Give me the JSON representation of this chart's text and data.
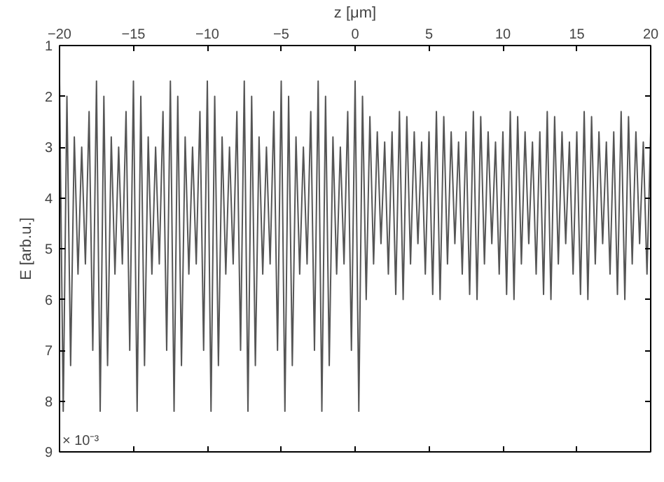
{
  "chart_data": {
    "type": "line",
    "xlabel": "z [μm]",
    "ylabel": "E [arb.u.]",
    "annotations": [
      "× 10⁻³"
    ],
    "x": [
      -20,
      -19.75,
      -19.5,
      -19.25,
      -19,
      -18.75,
      -18.5,
      -18.25,
      -18,
      -17.75,
      -17.5,
      -17.25,
      -17,
      -16.75,
      -16.5,
      -16.25,
      -16,
      -15.75,
      -15.5,
      -15.25,
      -15,
      -14.75,
      -14.5,
      -14.25,
      -14,
      -13.75,
      -13.5,
      -13.25,
      -13,
      -12.75,
      -12.5,
      -12.25,
      -12,
      -11.75,
      -11.5,
      -11.25,
      -11,
      -10.75,
      -10.5,
      -10.25,
      -10,
      -9.75,
      -9.5,
      -9.25,
      -9,
      -8.75,
      -8.5,
      -8.25,
      -8,
      -7.75,
      -7.5,
      -7.25,
      -7,
      -6.75,
      -6.5,
      -6.25,
      -6,
      -5.75,
      -5.5,
      -5.25,
      -5,
      -4.75,
      -4.5,
      -4.25,
      -4,
      -3.75,
      -3.5,
      -3.25,
      -3,
      -2.75,
      -2.5,
      -2.25,
      -2,
      -1.75,
      -1.5,
      -1.25,
      -1,
      -0.75,
      -0.5,
      -0.25,
      0,
      0.25,
      0.5,
      0.75,
      1,
      1.25,
      1.5,
      1.75,
      2,
      2.25,
      2.5,
      2.75,
      3,
      3.25,
      3.5,
      3.75,
      4,
      4.25,
      4.5,
      4.75,
      5,
      5.25,
      5.5,
      5.75,
      6,
      6.25,
      6.5,
      6.75,
      7,
      7.25,
      7.5,
      7.75,
      8,
      8.25,
      8.5,
      8.75,
      9,
      9.25,
      9.5,
      9.75,
      10,
      10.25,
      10.5,
      10.75,
      11,
      11.25,
      11.5,
      11.75,
      12,
      12.25,
      12.5,
      12.75,
      13,
      13.25,
      13.5,
      13.75,
      14,
      14.25,
      14.5,
      14.75,
      15,
      15.25,
      15.5,
      15.75,
      16,
      16.25,
      16.5,
      16.75,
      17,
      17.25,
      17.5,
      17.75,
      18,
      18.25,
      18.5,
      18.75,
      19,
      19.25,
      19.5,
      19.75,
      20
    ],
    "series": [
      {
        "color": "#555555",
        "values": [
          1.7,
          8.2,
          2.0,
          7.3,
          2.8,
          5.5,
          3.0,
          5.3,
          2.3,
          7.0,
          1.7,
          8.2,
          2.0,
          7.3,
          2.8,
          5.5,
          3.0,
          5.3,
          2.3,
          7.0,
          1.7,
          8.2,
          2.0,
          7.3,
          2.8,
          5.5,
          3.0,
          5.3,
          2.3,
          7.0,
          1.7,
          8.2,
          2.0,
          7.3,
          2.8,
          5.5,
          3.0,
          5.3,
          2.3,
          7.0,
          1.7,
          8.2,
          2.0,
          7.3,
          2.8,
          5.5,
          3.0,
          5.3,
          2.3,
          7.0,
          1.7,
          8.2,
          2.0,
          7.3,
          2.8,
          5.5,
          3.0,
          5.3,
          2.3,
          7.0,
          1.7,
          8.2,
          2.0,
          7.3,
          2.8,
          5.5,
          3.0,
          5.3,
          2.3,
          7.0,
          1.7,
          8.2,
          2.0,
          7.3,
          2.8,
          5.5,
          3.0,
          5.3,
          2.3,
          7.0,
          1.7,
          8.2,
          2.0,
          6.0,
          2.4,
          5.3,
          2.7,
          4.9,
          2.9,
          5.5,
          2.7,
          5.9,
          2.3,
          6.0,
          2.4,
          5.3,
          2.7,
          4.9,
          2.9,
          5.5,
          2.7,
          5.9,
          2.3,
          6.0,
          2.4,
          5.3,
          2.7,
          4.9,
          2.9,
          5.5,
          2.7,
          5.9,
          2.3,
          6.0,
          2.4,
          5.3,
          2.7,
          4.9,
          2.9,
          5.5,
          2.7,
          5.9,
          2.3,
          6.0,
          2.4,
          5.3,
          2.7,
          4.9,
          2.9,
          5.5,
          2.7,
          5.9,
          2.3,
          6.0,
          2.4,
          5.3,
          2.7,
          4.9,
          2.9,
          5.5,
          2.7,
          5.9,
          2.3,
          6.0,
          2.4,
          5.3,
          2.7,
          4.9,
          2.9,
          5.5,
          2.7,
          5.9,
          2.3,
          6.0,
          2.4,
          5.3,
          2.7,
          4.9,
          2.9,
          5.5,
          2.7
        ]
      }
    ],
    "xlim": [
      -20,
      20
    ],
    "xticks": [
      -20,
      -15,
      -10,
      -5,
      0,
      5,
      10,
      15,
      20
    ],
    "ylim": [
      9,
      1
    ],
    "yticks": [
      1,
      2,
      3,
      4,
      5,
      6,
      7,
      8,
      9
    ],
    "grid": false
  }
}
